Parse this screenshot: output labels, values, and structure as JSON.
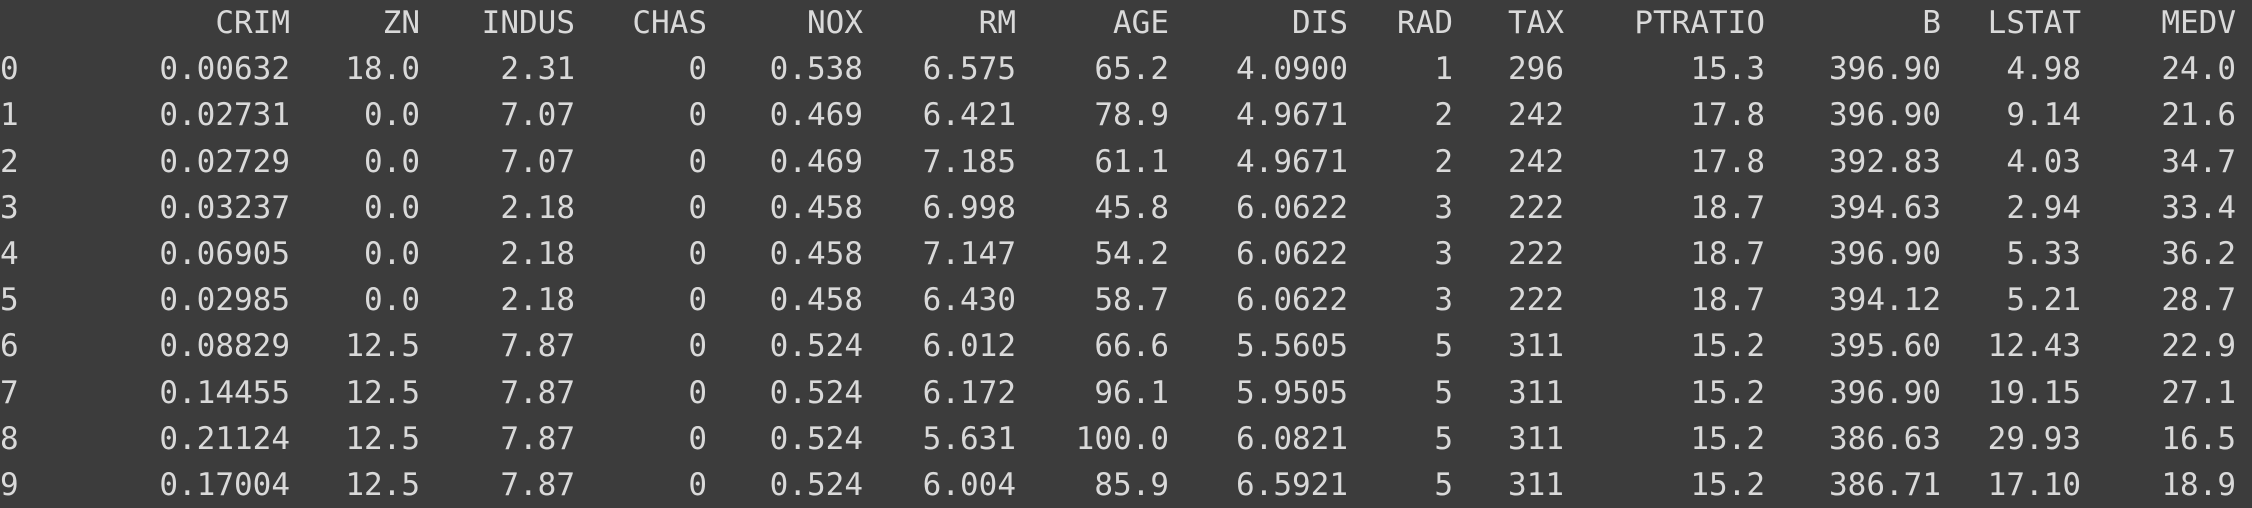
{
  "dataframe": {
    "columns": [
      "CRIM",
      "ZN",
      "INDUS",
      "CHAS",
      "NOX",
      "RM",
      "AGE",
      "DIS",
      "RAD",
      "TAX",
      "PTRATIO",
      "B",
      "LSTAT",
      "MEDV"
    ],
    "rows": [
      {
        "index": "0",
        "values": [
          "0.00632",
          "18.0",
          "2.31",
          "0",
          "0.538",
          "6.575",
          "65.2",
          "4.0900",
          "1",
          "296",
          "15.3",
          "396.90",
          "4.98",
          "24.0"
        ]
      },
      {
        "index": "1",
        "values": [
          "0.02731",
          "0.0",
          "7.07",
          "0",
          "0.469",
          "6.421",
          "78.9",
          "4.9671",
          "2",
          "242",
          "17.8",
          "396.90",
          "9.14",
          "21.6"
        ]
      },
      {
        "index": "2",
        "values": [
          "0.02729",
          "0.0",
          "7.07",
          "0",
          "0.469",
          "7.185",
          "61.1",
          "4.9671",
          "2",
          "242",
          "17.8",
          "392.83",
          "4.03",
          "34.7"
        ]
      },
      {
        "index": "3",
        "values": [
          "0.03237",
          "0.0",
          "2.18",
          "0",
          "0.458",
          "6.998",
          "45.8",
          "6.0622",
          "3",
          "222",
          "18.7",
          "394.63",
          "2.94",
          "33.4"
        ]
      },
      {
        "index": "4",
        "values": [
          "0.06905",
          "0.0",
          "2.18",
          "0",
          "0.458",
          "7.147",
          "54.2",
          "6.0622",
          "3",
          "222",
          "18.7",
          "396.90",
          "5.33",
          "36.2"
        ]
      },
      {
        "index": "5",
        "values": [
          "0.02985",
          "0.0",
          "2.18",
          "0",
          "0.458",
          "6.430",
          "58.7",
          "6.0622",
          "3",
          "222",
          "18.7",
          "394.12",
          "5.21",
          "28.7"
        ]
      },
      {
        "index": "6",
        "values": [
          "0.08829",
          "12.5",
          "7.87",
          "0",
          "0.524",
          "6.012",
          "66.6",
          "5.5605",
          "5",
          "311",
          "15.2",
          "395.60",
          "12.43",
          "22.9"
        ]
      },
      {
        "index": "7",
        "values": [
          "0.14455",
          "12.5",
          "7.87",
          "0",
          "0.524",
          "6.172",
          "96.1",
          "5.9505",
          "5",
          "311",
          "15.2",
          "396.90",
          "19.15",
          "27.1"
        ]
      },
      {
        "index": "8",
        "values": [
          "0.21124",
          "12.5",
          "7.87",
          "0",
          "0.524",
          "5.631",
          "100.0",
          "6.0821",
          "5",
          "311",
          "15.2",
          "386.63",
          "29.93",
          "16.5"
        ]
      },
      {
        "index": "9",
        "values": [
          "0.17004",
          "12.5",
          "7.87",
          "0",
          "0.524",
          "6.004",
          "85.9",
          "6.5921",
          "5",
          "311",
          "15.2",
          "386.71",
          "17.10",
          "18.9"
        ]
      }
    ]
  },
  "theme": {
    "background": "#3c3c3c",
    "text": "#d9d9d9"
  }
}
